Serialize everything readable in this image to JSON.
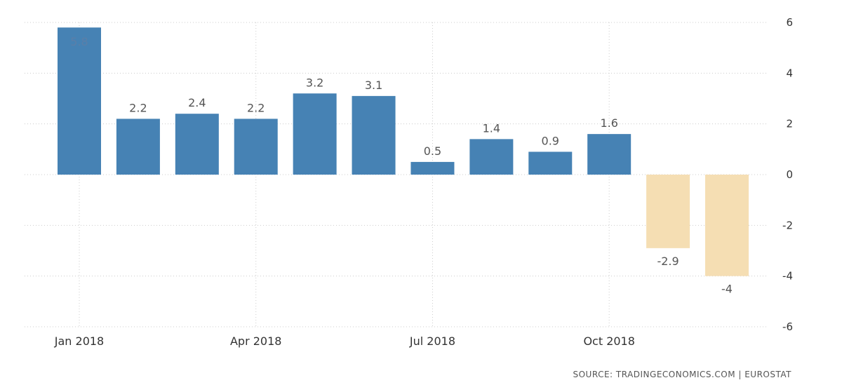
{
  "chart_data": {
    "type": "bar",
    "categories": [
      "Jan 2018",
      "Feb 2018",
      "Mar 2018",
      "Apr 2018",
      "May 2018",
      "Jun 2018",
      "Jul 2018",
      "Aug 2018",
      "Sep 2018",
      "Oct 2018",
      "Nov 2018",
      "Dec 2018"
    ],
    "values": [
      5.8,
      2.2,
      2.4,
      2.2,
      3.2,
      3.1,
      0.5,
      1.4,
      0.9,
      1.6,
      -2.9,
      -4
    ],
    "value_labels": [
      "5.8",
      "2.2",
      "2.4",
      "2.2",
      "3.2",
      "3.1",
      "0.5",
      "1.4",
      "0.9",
      "1.6",
      "-2.9",
      "-4"
    ],
    "x_tick_labels": [
      "Jan 2018",
      "Apr 2018",
      "Jul 2018",
      "Oct 2018"
    ],
    "x_tick_categories": [
      "Jan 2018",
      "Apr 2018",
      "Jul 2018",
      "Oct 2018"
    ],
    "y_ticks": [
      6,
      4,
      2,
      0,
      -2,
      -4,
      -6
    ],
    "ylim": [
      -6,
      6
    ],
    "y_axis_side": "right",
    "grid": true,
    "title": "",
    "xlabel": "",
    "ylabel": "",
    "colors": {
      "positive": "#4682b4",
      "negative": "#f5deb3"
    }
  },
  "source_text": "SOURCE: TRADINGECONOMICS.COM  |  EUROSTAT"
}
